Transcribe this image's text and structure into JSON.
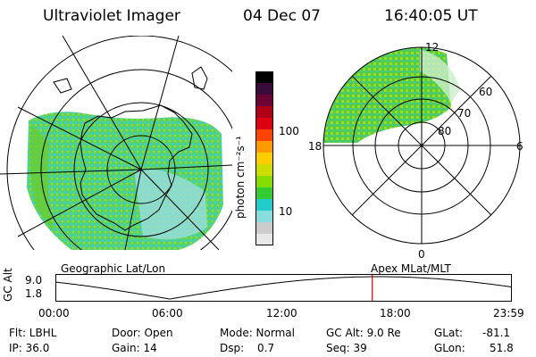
{
  "header": {
    "title": "Ultraviolet Imager",
    "date": "04 Dec 07",
    "time": "16:40:05 UT"
  },
  "left_map": {
    "caption": "Geographic Lat/Lon"
  },
  "right_map": {
    "caption": "Apex MLat/MLT",
    "lat_labels": [
      "60",
      "70",
      "80"
    ],
    "mlt_labels": {
      "top": "12",
      "left": "18",
      "right": "6",
      "bottom": "0"
    }
  },
  "colorbar": {
    "label": "photon cm⁻²s⁻¹",
    "ticks": [
      "100",
      "10"
    ],
    "colors": [
      "#000000",
      "#3a0a3a",
      "#6a0033",
      "#b00018",
      "#dd0010",
      "#ff4400",
      "#ff9900",
      "#ffcc00",
      "#ccdd00",
      "#88dd00",
      "#33cc33",
      "#22cccc",
      "#88dddd",
      "#cccccc",
      "#e8e8e8"
    ]
  },
  "orbit_plot": {
    "ylabel": "GC Alt",
    "yticks": [
      "9.0",
      "1.8"
    ],
    "xticks": [
      "00:00",
      "06:00",
      "12:00",
      "18:00",
      "23:59"
    ],
    "marker_hour": 16.668
  },
  "info": {
    "flt": "Flt: LBHL",
    "ip": "IP: 36.0",
    "door": "Door: Open",
    "gain": "Gain: 14",
    "mode": "Mode: Normal",
    "dsp_label": "Dsp:",
    "dsp_value": "0.7",
    "gcalt": "GC Alt: 9.0 Re",
    "seq": "Seq: 39",
    "glat_label": "GLat:",
    "glat_value": "-81.1",
    "glon_label": "GLon:",
    "glon_value": "51.8"
  }
}
